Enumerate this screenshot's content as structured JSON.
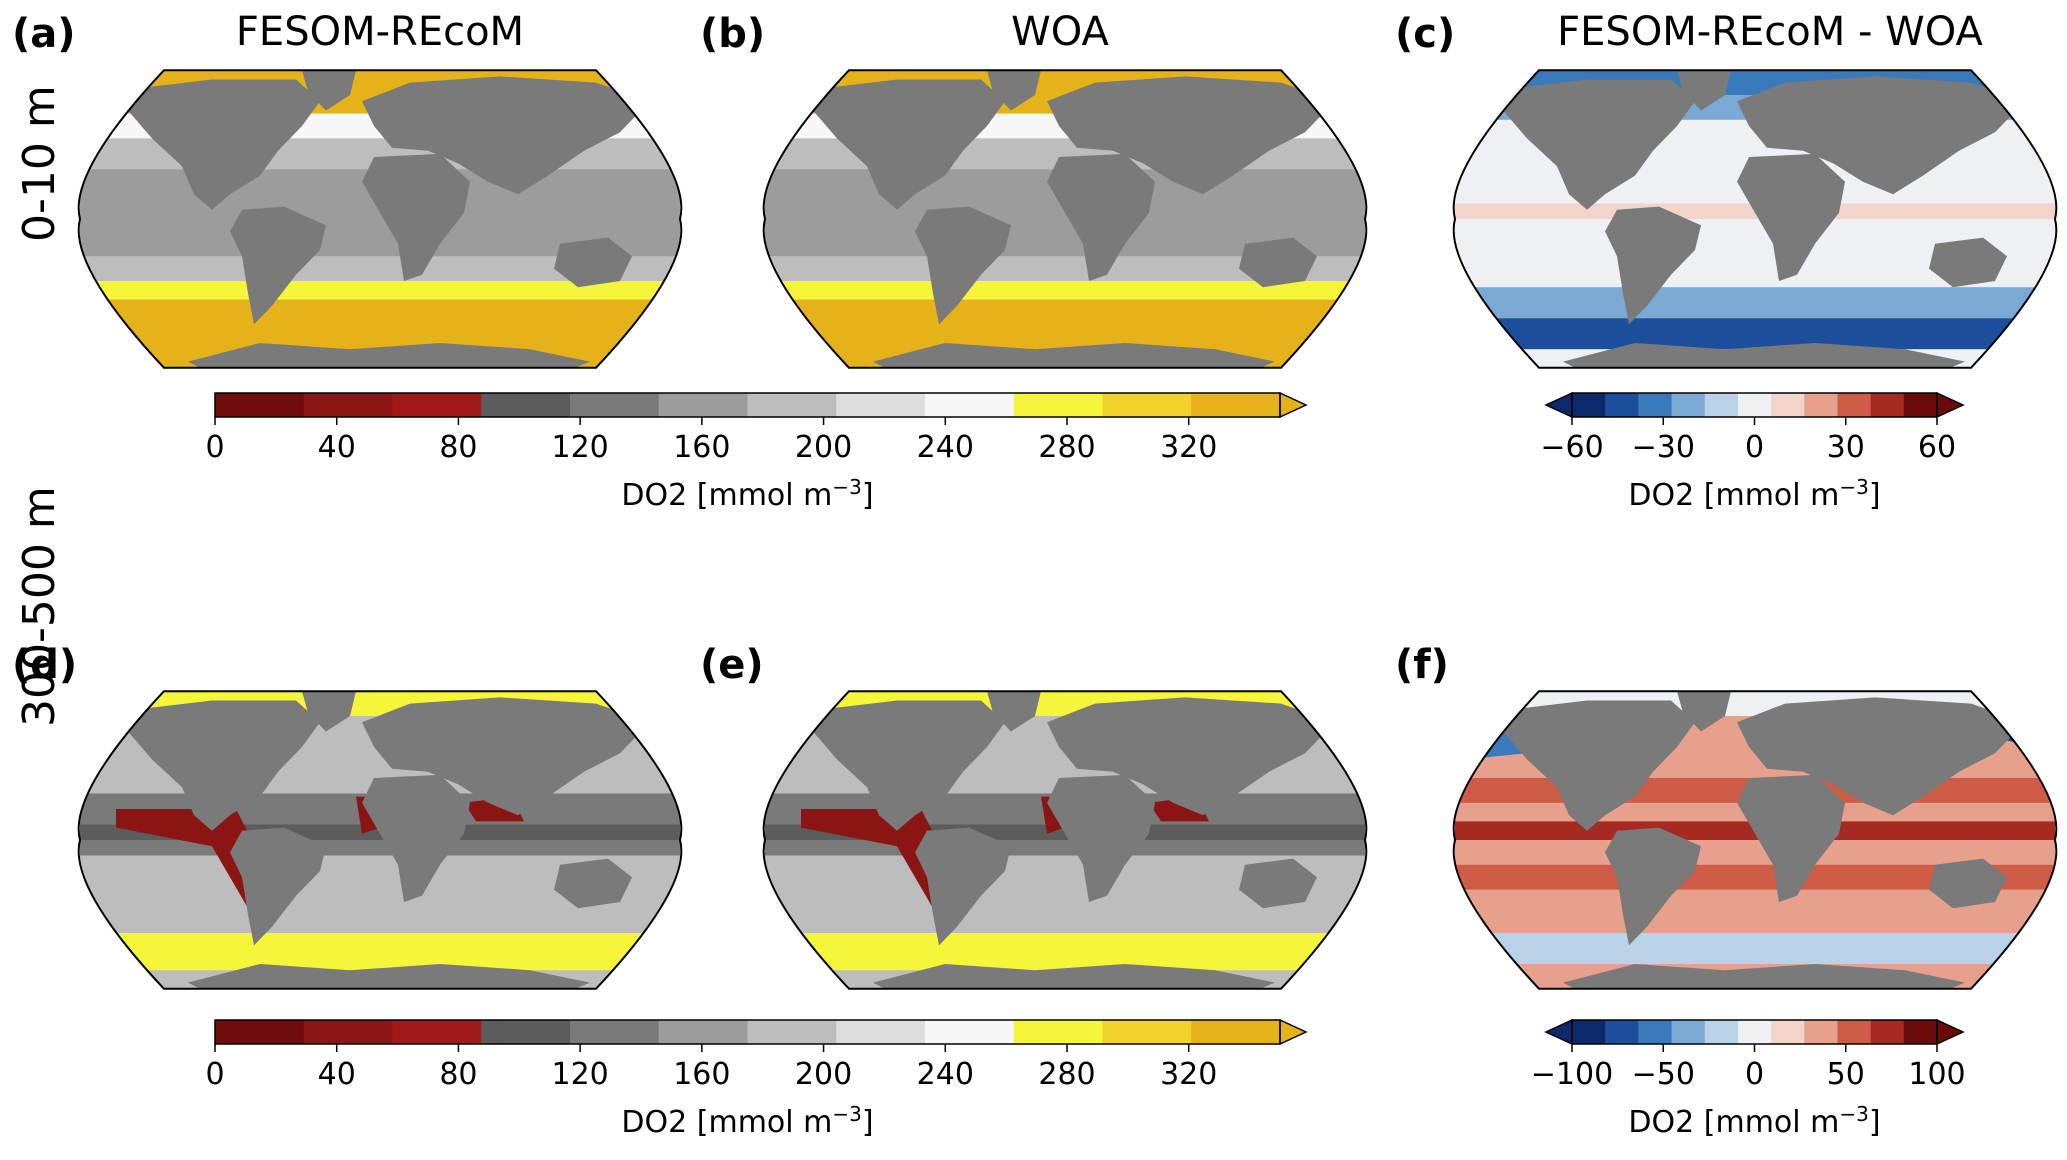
{
  "rows": [
    {
      "label": "0-10 m"
    },
    {
      "label": "300-500 m"
    }
  ],
  "panels": [
    {
      "letter": "(a)",
      "title": "FESOM-REcoM",
      "field": "model",
      "depth": "surface"
    },
    {
      "letter": "(b)",
      "title": "WOA",
      "field": "obs",
      "depth": "surface"
    },
    {
      "letter": "(c)",
      "title": "FESOM-REcoM - WOA",
      "field": "diff",
      "depth": "surface"
    },
    {
      "letter": "(d)",
      "title": "",
      "field": "model",
      "depth": "deep"
    },
    {
      "letter": "(e)",
      "title": "",
      "field": "obs",
      "depth": "deep"
    },
    {
      "letter": "(f)",
      "title": "",
      "field": "diff",
      "depth": "deep"
    }
  ],
  "colorbars": [
    {
      "id": "abs-top",
      "ticks": [
        "0",
        "40",
        "80",
        "120",
        "160",
        "200",
        "240",
        "280",
        "320"
      ],
      "label_main": "DO2 [mmol m",
      "label_sup": "−3",
      "label_end": "]"
    },
    {
      "id": "diff-top",
      "ticks": [
        "−60",
        "−30",
        "0",
        "30",
        "60"
      ],
      "label_main": "DO2 [mmol m",
      "label_sup": "−3",
      "label_end": "]"
    },
    {
      "id": "abs-bottom",
      "ticks": [
        "0",
        "40",
        "80",
        "120",
        "160",
        "200",
        "240",
        "280",
        "320"
      ],
      "label_main": "DO2 [mmol m",
      "label_sup": "−3",
      "label_end": "]"
    },
    {
      "id": "diff-bottom",
      "ticks": [
        "−100",
        "−50",
        "0",
        "50",
        "100"
      ],
      "label_main": "DO2 [mmol m",
      "label_sup": "−3",
      "label_end": "]"
    }
  ],
  "scales": {
    "absolute": {
      "min": 0,
      "max": 350,
      "extend": "max",
      "colors": [
        "#6e0b0b",
        "#8b1515",
        "#a01a1a",
        "#5c5c5c",
        "#7a7a7a",
        "#9c9c9c",
        "#bdbdbd",
        "#dedede",
        "#f7f7f7",
        "#f5f53a",
        "#f2d22a",
        "#e6b21a"
      ]
    },
    "difference": {
      "extend": "both",
      "colors": [
        "#0c2a6b",
        "#1b4f9c",
        "#3b79bd",
        "#7aa9d4",
        "#b9d2e8",
        "#eef0f3",
        "#f2d4cc",
        "#e6a08b",
        "#cf5c47",
        "#a62a22",
        "#6a0a0a"
      ]
    }
  },
  "land_color": "#7a7a7a"
}
